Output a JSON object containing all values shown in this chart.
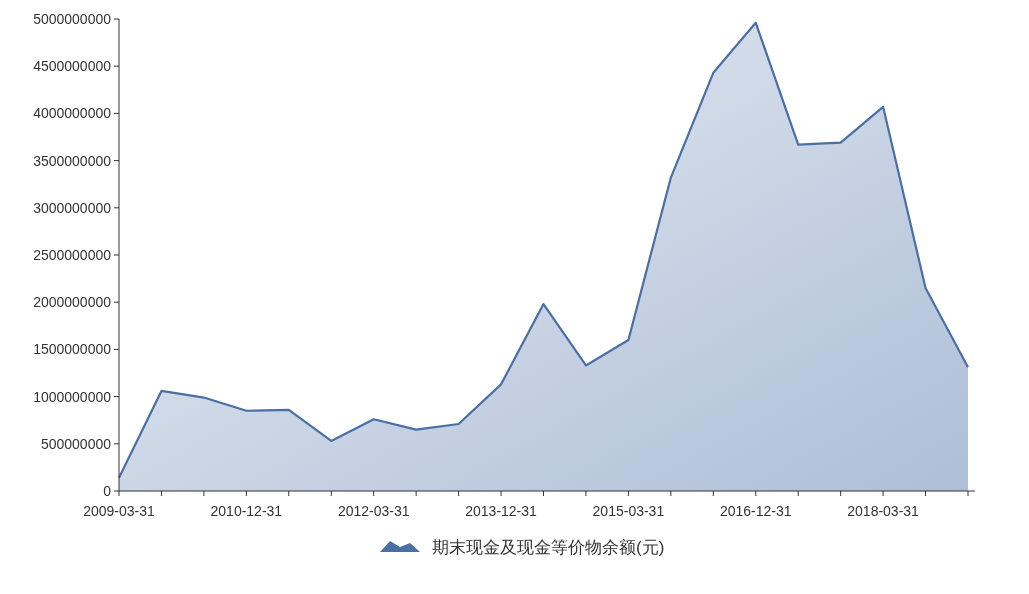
{
  "chart_data": {
    "type": "area",
    "categories": [
      "2009-03-31",
      null,
      null,
      "2010-12-31",
      null,
      null,
      "2012-03-31",
      null,
      null,
      "2013-12-31",
      null,
      null,
      "2015-03-31",
      null,
      null,
      "2016-12-31",
      null,
      null,
      "2018-03-31",
      null,
      null
    ],
    "series": [
      {
        "name": "期末现金及现金等价物余额(元)",
        "color": "#4a6fa5",
        "values": [
          140000000,
          1060000000,
          990000000,
          850000000,
          860000000,
          530000000,
          760000000,
          650000000,
          710000000,
          1130000000,
          1980000000,
          1330000000,
          1600000000,
          3320000000,
          4430000000,
          4960000000,
          3670000000,
          3690000000,
          4070000000,
          2150000000,
          1310000000
        ]
      }
    ],
    "ylim": [
      0,
      5000000000
    ],
    "yticks": [
      0,
      500000000,
      1000000000,
      1500000000,
      2000000000,
      2500000000,
      3000000000,
      3500000000,
      4000000000,
      4500000000,
      5000000000
    ],
    "legend": "bottom",
    "grid": false
  }
}
